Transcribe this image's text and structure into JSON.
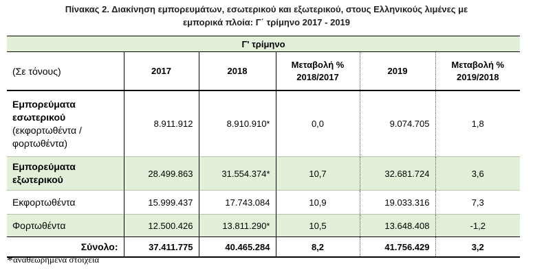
{
  "title_line1": "Πίνακας 2. Διακίνηση εμπορευμάτων, εσωτερικού και εξωτερικού, στους Ελληνικούς λιμένες με",
  "title_line2": "εμπορικά πλοία: Γ΄ τρίμηνο 2017 - 2019",
  "table": {
    "group_header": "Γ' τρίμηνο",
    "unit_label": "(Σε τόνους)",
    "columns": [
      "2017",
      "2018",
      "Μεταβολή %",
      "2018/2017",
      "2019",
      "Μεταβολή %",
      "2019/2018"
    ],
    "rows": [
      {
        "label_bold_1": "Εμπορεύματα",
        "label_bold_2": "εσωτερικού",
        "label_note_1": "(εκφορτωθέντα /",
        "label_note_2": "φορτωθέντα)",
        "values": [
          "8.911.912",
          "8.910.910*",
          "0,0",
          "9.074.705",
          "1,8"
        ]
      },
      {
        "label_bold_1": "Εμπορεύματα",
        "label_bold_2": "εξωτερικού",
        "values": [
          "28.499.863",
          "31.554.374*",
          "10,7",
          "32.681.724",
          "3,6"
        ]
      },
      {
        "label": "Εκφορτωθέντα",
        "values": [
          "15.999.437",
          "17.743.084",
          "10,9",
          "19.033.316",
          "7,3"
        ]
      },
      {
        "label": "Φορτωθέντα",
        "values": [
          "12.500.426",
          "13.811.290*",
          "10,5",
          "13.648.408",
          "-1,2"
        ]
      }
    ],
    "total": {
      "label": "Σύνολο:",
      "values": [
        "37.411.775",
        "40.465.284",
        "8,2",
        "41.756.429",
        "3,2"
      ]
    }
  },
  "footnote": {
    "star": "*",
    "text": "αναθεωρημένα στοιχεία"
  },
  "colors": {
    "band": "#e2efd9"
  }
}
